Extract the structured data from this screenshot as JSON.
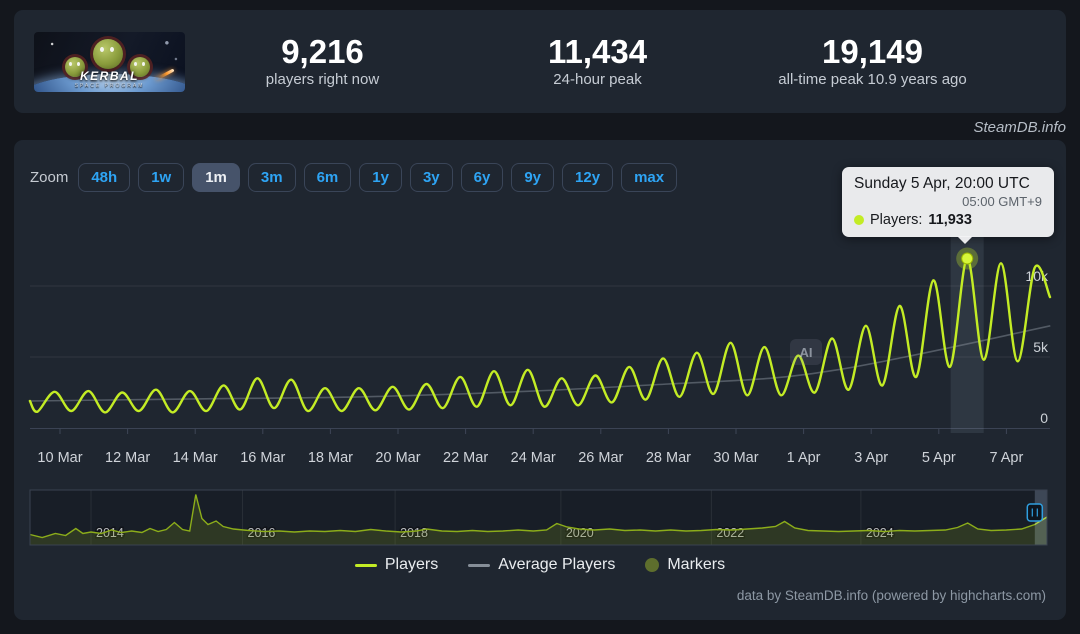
{
  "header": {
    "game": {
      "title": "KERBAL",
      "subtitle": "SPACE PROGRAM"
    },
    "stats": [
      {
        "value": "9,216",
        "label": "players right now"
      },
      {
        "value": "11,434",
        "label": "24-hour peak"
      },
      {
        "value": "19,149",
        "label": "all-time peak 10.9 years ago"
      }
    ]
  },
  "watermark": "SteamDB.info",
  "toolbar": {
    "zoom_label": "Zoom",
    "selected": "1m",
    "buttons": [
      {
        "label": "48h"
      },
      {
        "label": "1w"
      },
      {
        "label": "1m"
      },
      {
        "label": "3m"
      },
      {
        "label": "6m"
      },
      {
        "label": "1y"
      },
      {
        "label": "3y"
      },
      {
        "label": "6y"
      },
      {
        "label": "9y"
      },
      {
        "label": "12y"
      },
      {
        "label": "max"
      }
    ]
  },
  "tooltip": {
    "title": "Sunday 5 Apr, 20:00 UTC",
    "local_time": "05:00 GMT+9",
    "series_label": "Players:",
    "value": "11,933"
  },
  "ai_badge": "AI",
  "legend": {
    "items": [
      {
        "label": "Players",
        "type": "line",
        "color": "#c3ec25"
      },
      {
        "label": "Average Players",
        "type": "line",
        "color": "#868e98"
      },
      {
        "label": "Markers",
        "type": "circle",
        "color": "#5e6e2d"
      }
    ]
  },
  "footer": "data by SteamDB.info (powered by highcharts.com)",
  "colors": {
    "accent_blue": "#2ea4f4",
    "line_green": "#c3ec25",
    "avg_gray": "#868e98",
    "tooltip_bg": "#f1f2f4",
    "card_bg": "#1f2630",
    "page_bg": "#14171d"
  },
  "chart_data": {
    "type": "line",
    "x_range": {
      "start": "9 Mar",
      "end": "8 Apr"
    },
    "x_tick_labels": [
      "10 Mar",
      "12 Mar",
      "14 Mar",
      "16 Mar",
      "18 Mar",
      "20 Mar",
      "22 Mar",
      "24 Mar",
      "26 Mar",
      "28 Mar",
      "30 Mar",
      "1 Apr",
      "3 Apr",
      "5 Apr",
      "7 Apr"
    ],
    "y_ticks": [
      {
        "label": "10k",
        "value": 10000
      },
      {
        "label": "5k",
        "value": 5000
      },
      {
        "label": "0",
        "value": 0
      }
    ],
    "ylim": [
      0,
      14000
    ],
    "grid": "horizontal-only",
    "legend_position": "bottom",
    "series": [
      {
        "name": "Players",
        "color": "#c3ec25",
        "daily_min_max": [
          {
            "d": -1,
            "date": "9 Mar",
            "min": 1150,
            "max": 2550
          },
          {
            "d": 0,
            "date": "10 Mar",
            "min": 1200,
            "max": 2600
          },
          {
            "d": 1,
            "date": "11 Mar",
            "min": 1100,
            "max": 2500
          },
          {
            "d": 2,
            "date": "12 Mar",
            "min": 1200,
            "max": 2700
          },
          {
            "d": 3,
            "date": "13 Mar",
            "min": 1100,
            "max": 2600
          },
          {
            "d": 4,
            "date": "14 Mar",
            "min": 1200,
            "max": 3000
          },
          {
            "d": 5,
            "date": "15 Mar",
            "min": 1300,
            "max": 3500
          },
          {
            "d": 6,
            "date": "16 Mar",
            "min": 1400,
            "max": 3400
          },
          {
            "d": 7,
            "date": "17 Mar",
            "min": 1200,
            "max": 2800
          },
          {
            "d": 8,
            "date": "18 Mar",
            "min": 1200,
            "max": 2800
          },
          {
            "d": 9,
            "date": "19 Mar",
            "min": 1250,
            "max": 2900
          },
          {
            "d": 10,
            "date": "20 Mar",
            "min": 1300,
            "max": 3100
          },
          {
            "d": 11,
            "date": "21 Mar",
            "min": 1400,
            "max": 3600
          },
          {
            "d": 12,
            "date": "22 Mar",
            "min": 1500,
            "max": 4000
          },
          {
            "d": 13,
            "date": "23 Mar",
            "min": 1600,
            "max": 4100
          },
          {
            "d": 14,
            "date": "24 Mar",
            "min": 1500,
            "max": 3500
          },
          {
            "d": 15,
            "date": "25 Mar",
            "min": 1600,
            "max": 3700
          },
          {
            "d": 16,
            "date": "26 Mar",
            "min": 1800,
            "max": 4300
          },
          {
            "d": 17,
            "date": "27 Mar",
            "min": 2000,
            "max": 4900
          },
          {
            "d": 18,
            "date": "28 Mar",
            "min": 2200,
            "max": 5300
          },
          {
            "d": 19,
            "date": "29 Mar",
            "min": 2400,
            "max": 6000
          },
          {
            "d": 20,
            "date": "30 Mar",
            "min": 2300,
            "max": 5700
          },
          {
            "d": 21,
            "date": "31 Mar",
            "min": 2300,
            "max": 5100
          },
          {
            "d": 22,
            "date": "1 Apr",
            "min": 2500,
            "max": 6300
          },
          {
            "d": 23,
            "date": "2 Apr",
            "min": 2700,
            "max": 7200
          },
          {
            "d": 24,
            "date": "3 Apr",
            "min": 3000,
            "max": 8600
          },
          {
            "d": 25,
            "date": "4 Apr",
            "min": 3600,
            "max": 10400
          },
          {
            "d": 26,
            "date": "5 Apr",
            "min": 4300,
            "max": 11933
          },
          {
            "d": 27,
            "date": "6 Apr",
            "min": 4800,
            "max": 11600
          },
          {
            "d": 28,
            "date": "7 Apr",
            "min": 4700,
            "max": 11300
          }
        ],
        "last_point": {
          "d": 29.29,
          "date": "8 Apr",
          "value": 9216
        }
      },
      {
        "name": "Average Players",
        "color": "#868e98",
        "points": [
          {
            "d": -0.9,
            "value": 1900
          },
          {
            "d": 4,
            "value": 2050
          },
          {
            "d": 9,
            "value": 2200
          },
          {
            "d": 14,
            "value": 2600
          },
          {
            "d": 18,
            "value": 3100
          },
          {
            "d": 21,
            "value": 3500
          },
          {
            "d": 23,
            "value": 4100
          },
          {
            "d": 25,
            "value": 5000
          },
          {
            "d": 27,
            "value": 6000
          },
          {
            "d": 29.3,
            "value": 7200
          }
        ]
      }
    ],
    "highlight": {
      "series": "Players",
      "d": 26.84,
      "date": "5 Apr",
      "time": "20:00 UTC",
      "value": 11933
    },
    "navigator": {
      "year_ticks": [
        {
          "label": "2014",
          "t": 0.06
        },
        {
          "label": "2016",
          "t": 0.209
        },
        {
          "label": "2018",
          "t": 0.359
        },
        {
          "label": "2020",
          "t": 0.522
        },
        {
          "label": "2022",
          "t": 0.67
        },
        {
          "label": "2024",
          "t": 0.817
        }
      ],
      "selected_window": {
        "t0": 0.988,
        "t1": 1.0
      },
      "profile": [
        [
          0,
          0.2
        ],
        [
          0.012,
          0.14
        ],
        [
          0.025,
          0.22
        ],
        [
          0.035,
          0.18
        ],
        [
          0.045,
          0.32
        ],
        [
          0.052,
          0.22
        ],
        [
          0.06,
          0.25
        ],
        [
          0.07,
          0.22
        ],
        [
          0.08,
          0.29
        ],
        [
          0.09,
          0.24
        ],
        [
          0.1,
          0.27
        ],
        [
          0.11,
          0.24
        ],
        [
          0.118,
          0.32
        ],
        [
          0.126,
          0.26
        ],
        [
          0.134,
          0.3
        ],
        [
          0.142,
          0.44
        ],
        [
          0.15,
          0.3
        ],
        [
          0.157,
          0.27
        ],
        [
          0.163,
          1.0
        ],
        [
          0.169,
          0.52
        ],
        [
          0.175,
          0.4
        ],
        [
          0.183,
          0.47
        ],
        [
          0.19,
          0.36
        ],
        [
          0.2,
          0.31
        ],
        [
          0.215,
          0.28
        ],
        [
          0.23,
          0.26
        ],
        [
          0.245,
          0.27
        ],
        [
          0.26,
          0.25
        ],
        [
          0.275,
          0.27
        ],
        [
          0.29,
          0.26
        ],
        [
          0.305,
          0.28
        ],
        [
          0.32,
          0.26
        ],
        [
          0.335,
          0.3
        ],
        [
          0.35,
          0.27
        ],
        [
          0.365,
          0.25
        ],
        [
          0.38,
          0.27
        ],
        [
          0.39,
          0.31
        ],
        [
          0.405,
          0.27
        ],
        [
          0.42,
          0.26
        ],
        [
          0.435,
          0.28
        ],
        [
          0.45,
          0.26
        ],
        [
          0.465,
          0.27
        ],
        [
          0.48,
          0.29
        ],
        [
          0.495,
          0.27
        ],
        [
          0.508,
          0.29
        ],
        [
          0.518,
          0.42
        ],
        [
          0.528,
          0.35
        ],
        [
          0.54,
          0.31
        ],
        [
          0.555,
          0.29
        ],
        [
          0.57,
          0.31
        ],
        [
          0.585,
          0.28
        ],
        [
          0.6,
          0.29
        ],
        [
          0.615,
          0.27
        ],
        [
          0.63,
          0.29
        ],
        [
          0.645,
          0.27
        ],
        [
          0.66,
          0.28
        ],
        [
          0.675,
          0.3
        ],
        [
          0.69,
          0.29
        ],
        [
          0.705,
          0.31
        ],
        [
          0.72,
          0.33
        ],
        [
          0.733,
          0.36
        ],
        [
          0.742,
          0.46
        ],
        [
          0.752,
          0.33
        ],
        [
          0.765,
          0.28
        ],
        [
          0.78,
          0.27
        ],
        [
          0.795,
          0.26
        ],
        [
          0.81,
          0.27
        ],
        [
          0.825,
          0.28
        ],
        [
          0.84,
          0.26
        ],
        [
          0.855,
          0.28
        ],
        [
          0.87,
          0.27
        ],
        [
          0.885,
          0.28
        ],
        [
          0.9,
          0.29
        ],
        [
          0.912,
          0.34
        ],
        [
          0.922,
          0.43
        ],
        [
          0.932,
          0.31
        ],
        [
          0.945,
          0.28
        ],
        [
          0.96,
          0.29
        ],
        [
          0.975,
          0.31
        ],
        [
          0.988,
          0.4
        ],
        [
          1.0,
          0.55
        ]
      ]
    }
  }
}
